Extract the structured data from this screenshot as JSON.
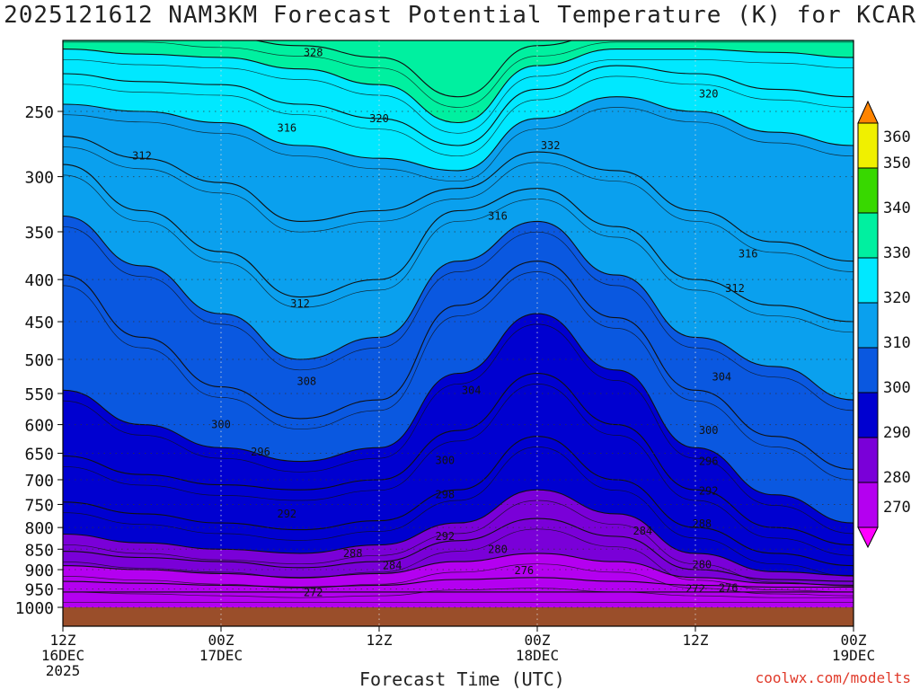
{
  "title": "2025121612 NAM3KM Forecast Potential Temperature (K) for KCAR",
  "credit": "coolwx.com/modelts",
  "chart_data": {
    "type": "heatmap",
    "title": "2025121612 NAM3KM Forecast Potential Temperature (K) for KCAR",
    "xlabel": "Forecast Time (UTC)",
    "ylabel": "",
    "x_ticks": [
      {
        "hour": 0,
        "line1": "12Z",
        "line2": "16DEC",
        "line3": "2025"
      },
      {
        "hour": 12,
        "line1": "00Z",
        "line2": "17DEC",
        "line3": ""
      },
      {
        "hour": 24,
        "line1": "12Z",
        "line2": "",
        "line3": ""
      },
      {
        "hour": 36,
        "line1": "00Z",
        "line2": "18DEC",
        "line3": ""
      },
      {
        "hour": 48,
        "line1": "12Z",
        "line2": "",
        "line3": ""
      },
      {
        "hour": 60,
        "line1": "00Z",
        "line2": "19DEC",
        "line3": ""
      }
    ],
    "xlim": [
      0,
      60
    ],
    "y_ticks": [
      250,
      300,
      350,
      400,
      450,
      500,
      550,
      600,
      650,
      700,
      750,
      800,
      850,
      900,
      950,
      1000
    ],
    "ylim": [
      1000,
      200
    ],
    "colorbar": {
      "levels": [
        270,
        280,
        290,
        300,
        310,
        320,
        330,
        340,
        350,
        360
      ],
      "colors": [
        "#ff00ff",
        "#b400f0",
        "#7a00d8",
        "#0000d0",
        "#0a58e0",
        "#0aa0ee",
        "#00e8ff",
        "#00f0a0",
        "#38d800",
        "#f0f000",
        "#ffb000",
        "#ff8400"
      ]
    },
    "isotherms": [
      {
        "value": 272,
        "pressure": [
          958,
          958,
          958,
          958,
          958,
          958,
          958,
          958,
          958,
          958,
          958
        ]
      },
      {
        "value": 276,
        "pressure": [
          930,
          935,
          940,
          945,
          940,
          925,
          920,
          930,
          940,
          945,
          945
        ]
      },
      {
        "value": 280,
        "pressure": [
          890,
          900,
          910,
          920,
          910,
          880,
          860,
          880,
          920,
          935,
          940
        ]
      },
      {
        "value": 284,
        "pressure": [
          855,
          870,
          880,
          895,
          880,
          830,
          780,
          820,
          900,
          925,
          930
        ]
      },
      {
        "value": 288,
        "pressure": [
          815,
          835,
          850,
          860,
          840,
          790,
          720,
          770,
          860,
          905,
          915
        ]
      },
      {
        "value": 292,
        "pressure": [
          745,
          770,
          790,
          805,
          785,
          720,
          620,
          700,
          800,
          860,
          890
        ]
      },
      {
        "value": 296,
        "pressure": [
          655,
          690,
          710,
          720,
          700,
          610,
          520,
          600,
          720,
          800,
          840
        ]
      },
      {
        "value": 300,
        "pressure": [
          545,
          600,
          640,
          665,
          640,
          520,
          440,
          515,
          640,
          730,
          790
        ]
      },
      {
        "value": 304,
        "pressure": [
          395,
          470,
          540,
          590,
          560,
          430,
          380,
          445,
          545,
          620,
          680
        ]
      },
      {
        "value": 308,
        "pressure": [
          335,
          385,
          440,
          500,
          470,
          380,
          340,
          395,
          470,
          510,
          560
        ]
      },
      {
        "value": 312,
        "pressure": [
          290,
          330,
          370,
          420,
          400,
          330,
          310,
          345,
          400,
          430,
          450
        ]
      },
      {
        "value": 316,
        "pressure": [
          268,
          285,
          305,
          340,
          330,
          310,
          280,
          295,
          330,
          360,
          380
        ]
      },
      {
        "value": 320,
        "pressure": [
          245,
          250,
          258,
          275,
          285,
          295,
          255,
          240,
          250,
          265,
          275
        ]
      },
      {
        "value": 324,
        "pressure": [
          225,
          230,
          232,
          245,
          255,
          275,
          235,
          220,
          225,
          235,
          240
        ]
      },
      {
        "value": 328,
        "pressure": [
          210,
          213,
          215,
          222,
          232,
          258,
          220,
          210,
          210,
          212,
          215
        ]
      },
      {
        "value": 332,
        "pressure": [
          200,
          200,
          203,
          208,
          215,
          240,
          208,
          200,
          200,
          200,
          200
        ]
      }
    ],
    "contour_labels": [
      {
        "text": "328",
        "hour": 19,
        "pressure": 212
      },
      {
        "text": "320",
        "hour": 24,
        "pressure": 255
      },
      {
        "text": "316",
        "hour": 17,
        "pressure": 262
      },
      {
        "text": "312",
        "hour": 6,
        "pressure": 283
      },
      {
        "text": "332",
        "hour": 37,
        "pressure": 275
      },
      {
        "text": "320",
        "hour": 49,
        "pressure": 238
      },
      {
        "text": "316",
        "hour": 33,
        "pressure": 335
      },
      {
        "text": "316",
        "hour": 52,
        "pressure": 372
      },
      {
        "text": "312",
        "hour": 18,
        "pressure": 428
      },
      {
        "text": "312",
        "hour": 51,
        "pressure": 410
      },
      {
        "text": "308",
        "hour": 18.5,
        "pressure": 532
      },
      {
        "text": "304",
        "hour": 31,
        "pressure": 545
      },
      {
        "text": "304",
        "hour": 50,
        "pressure": 525
      },
      {
        "text": "300",
        "hour": 12,
        "pressure": 600
      },
      {
        "text": "300",
        "hour": 29,
        "pressure": 663
      },
      {
        "text": "300",
        "hour": 49,
        "pressure": 610
      },
      {
        "text": "296",
        "hour": 15,
        "pressure": 648
      },
      {
        "text": "296",
        "hour": 49,
        "pressure": 665
      },
      {
        "text": "298",
        "hour": 29,
        "pressure": 730
      },
      {
        "text": "292",
        "hour": 17,
        "pressure": 770
      },
      {
        "text": "292",
        "hour": 29,
        "pressure": 820
      },
      {
        "text": "292",
        "hour": 49,
        "pressure": 722
      },
      {
        "text": "288",
        "hour": 22,
        "pressure": 860
      },
      {
        "text": "288",
        "hour": 48.5,
        "pressure": 792
      },
      {
        "text": "284",
        "hour": 25,
        "pressure": 890
      },
      {
        "text": "284",
        "hour": 44,
        "pressure": 808
      },
      {
        "text": "280",
        "hour": 33,
        "pressure": 850
      },
      {
        "text": "280",
        "hour": 48.5,
        "pressure": 887
      },
      {
        "text": "276",
        "hour": 35,
        "pressure": 902
      },
      {
        "text": "276",
        "hour": 50.5,
        "pressure": 947
      },
      {
        "text": "272",
        "hour": 19,
        "pressure": 960
      },
      {
        "text": "272",
        "hour": 48,
        "pressure": 950
      }
    ]
  }
}
